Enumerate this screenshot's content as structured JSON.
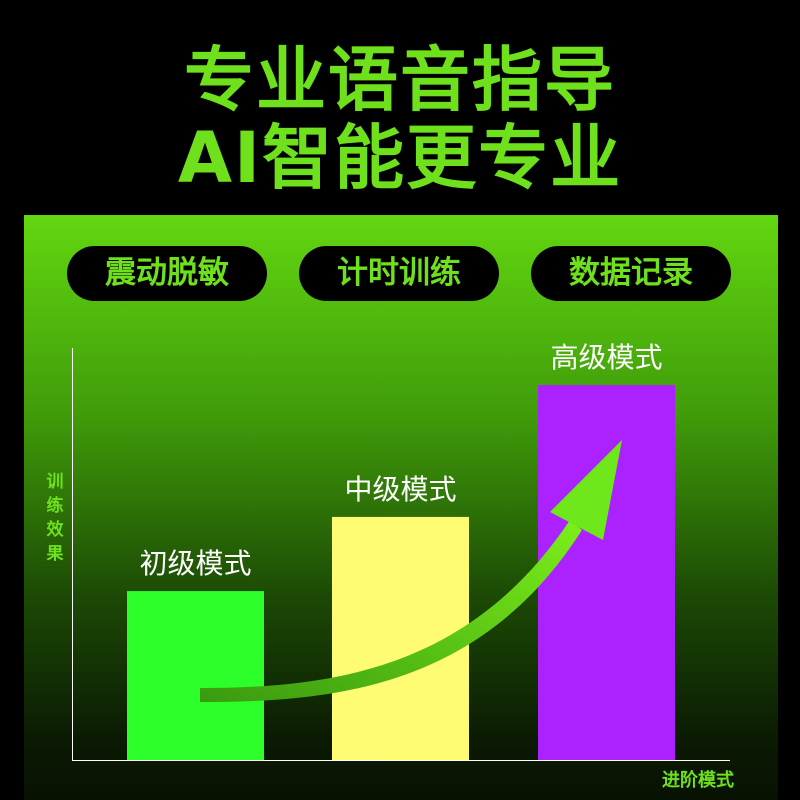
{
  "headline": {
    "line1": "专业语音指导",
    "line2": "AI智能更专业"
  },
  "features": [
    "震动脱敏",
    "计时训练",
    "数据记录"
  ],
  "colors": {
    "accent": "#6ee01c",
    "bar_beginner": "#2cff2a",
    "bar_intermediate": "#fffb73",
    "bar_advanced": "#ac22ff",
    "arrow": "#5fd914"
  },
  "icons": {
    "trend": "curved-up-arrow-icon"
  },
  "chart_data": {
    "type": "bar",
    "categories": [
      "初级模式",
      "中级模式",
      "高级模式"
    ],
    "values": [
      0.41,
      0.59,
      0.91
    ],
    "ylim": [
      0,
      1
    ],
    "xlabel": "进阶模式",
    "ylabel": "训练效果",
    "grid": false,
    "title": ""
  }
}
